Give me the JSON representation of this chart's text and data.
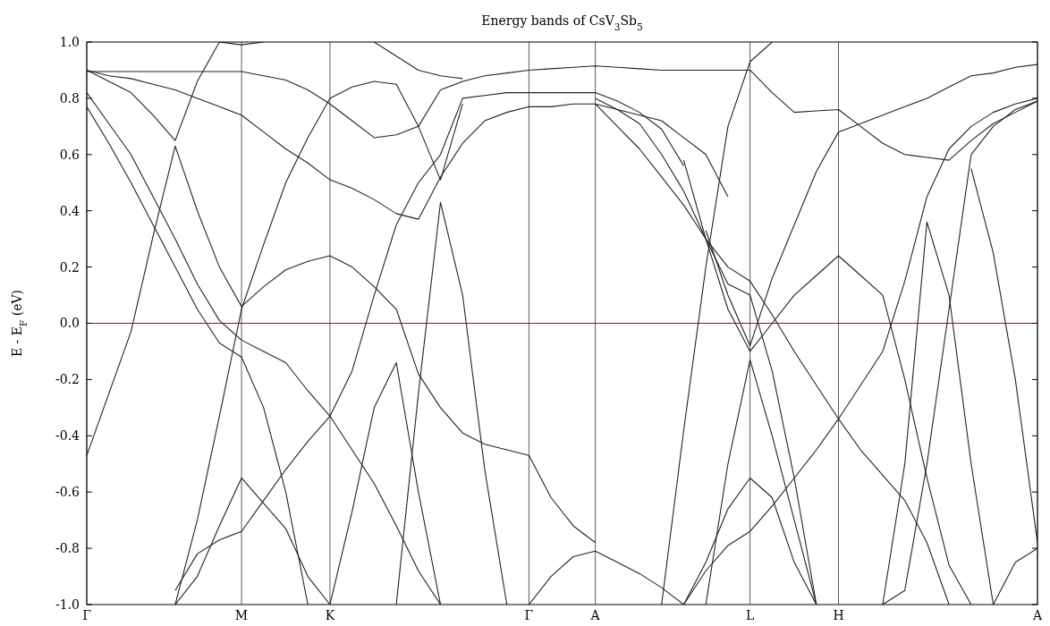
{
  "chart_data": {
    "type": "line",
    "title": "Energy bands of CsV$_{3}$Sb$_{5}$",
    "ylabel": "E - E$_{F}$ (eV)",
    "ylim": [
      -1,
      1
    ],
    "categories": [
      "Γ",
      null,
      null,
      null,
      null,
      null,
      null,
      "M",
      null,
      null,
      null,
      "K",
      null,
      null,
      null,
      null,
      null,
      null,
      null,
      null,
      "Γ",
      null,
      null,
      "A",
      null,
      null,
      null,
      null,
      null,
      null,
      "L",
      null,
      null,
      null,
      "H",
      null,
      null,
      null,
      null,
      null,
      null,
      null,
      null,
      "A"
    ],
    "yticks": [
      {
        "value": -1,
        "label": "-1.0"
      },
      {
        "value": -0.8,
        "label": "-0.8"
      },
      {
        "value": -0.6,
        "label": "-0.6"
      },
      {
        "value": -0.4,
        "label": "-0.4"
      },
      {
        "value": -0.2,
        "label": "-0.2"
      },
      {
        "value": 0,
        "label": "0.0"
      },
      {
        "value": 0.2,
        "label": "0.2"
      },
      {
        "value": 0.4,
        "label": "0.4"
      },
      {
        "value": 0.6,
        "label": "0.6"
      },
      {
        "value": 0.8,
        "label": "0.8"
      },
      {
        "value": 1,
        "label": "1.0"
      }
    ],
    "grid": "x",
    "marker": "none",
    "line_style": "solid",
    "ref_lines": [
      {
        "axis": "y",
        "value": 0,
        "color": "#cc0000"
      }
    ],
    "series": [
      {
        "color": "#222222",
        "values": [
          -0.47,
          -0.25,
          -0.03,
          0.31,
          0.63,
          0.4,
          0.2,
          0.06,
          0.13,
          0.19,
          0.22,
          0.24,
          0.2,
          0.13,
          0.05,
          -0.18,
          -0.3,
          -0.39,
          -0.43,
          -0.45,
          -0.47,
          -0.62,
          -0.72,
          -0.78,
          null,
          null,
          null,
          null,
          null,
          null,
          null,
          null,
          null,
          null,
          null,
          null,
          null,
          null,
          null,
          null,
          null,
          null,
          null,
          null
        ]
      },
      {
        "color": "#222222",
        "values": [
          0.9,
          0.86,
          0.82,
          0.74,
          0.65,
          0.86,
          1.0,
          null,
          null,
          null,
          null,
          null,
          null,
          null,
          null,
          null,
          null,
          null,
          null,
          null,
          null,
          null,
          null,
          null,
          null,
          null,
          null,
          null,
          null,
          null,
          null,
          null,
          null,
          null,
          null,
          null,
          null,
          null,
          null,
          null,
          null,
          null,
          null,
          null
        ]
      },
      {
        "color": "#222222",
        "values": [
          0.82,
          0.71,
          0.6,
          0.45,
          0.3,
          0.14,
          0.01,
          -0.06,
          -0.1,
          -0.14,
          -0.24,
          -0.33,
          -0.45,
          -0.57,
          -0.72,
          -0.88,
          -1.0,
          null,
          null,
          null,
          null,
          null,
          null,
          null,
          null,
          null,
          null,
          null,
          null,
          null,
          null,
          null,
          null,
          null,
          null,
          null,
          null,
          null,
          null,
          null,
          null,
          null,
          null,
          null
        ]
      },
      {
        "color": "#222222",
        "values": [
          0.77,
          0.64,
          0.5,
          0.35,
          0.2,
          0.05,
          -0.07,
          -0.12,
          -0.3,
          -0.6,
          -1.0,
          null,
          null,
          null,
          null,
          null,
          null,
          null,
          null,
          null,
          null,
          null,
          null,
          null,
          null,
          null,
          null,
          null,
          null,
          null,
          null,
          null,
          null,
          null,
          null,
          null,
          null,
          null,
          null,
          null,
          null,
          null,
          null,
          null
        ]
      },
      {
        "color": "#222222",
        "values": [
          0.9,
          0.88,
          0.87,
          0.85,
          0.83,
          0.8,
          0.77,
          0.74,
          0.68,
          0.62,
          0.57,
          0.51,
          0.48,
          0.44,
          0.39,
          0.37,
          0.52,
          0.64,
          0.72,
          0.75,
          0.77,
          0.77,
          0.78,
          0.78,
          0.76,
          0.74,
          0.72,
          0.66,
          0.6,
          0.45,
          null,
          null,
          null,
          null,
          null,
          null,
          null,
          null,
          null,
          null,
          null,
          null,
          null,
          null
        ]
      },
      {
        "color": "#222222",
        "values": [
          0.895,
          0.895,
          0.895,
          0.895,
          0.895,
          0.895,
          0.895,
          0.895,
          0.88,
          0.865,
          0.83,
          0.78,
          0.72,
          0.66,
          0.67,
          0.7,
          0.83,
          0.86,
          0.88,
          0.89,
          0.9,
          0.905,
          0.91,
          0.915,
          0.91,
          0.905,
          0.9,
          0.9,
          0.9,
          0.9,
          0.9,
          0.82,
          0.75,
          0.755,
          0.76,
          0.7,
          0.64,
          0.6,
          0.59,
          0.58,
          0.65,
          0.71,
          0.75,
          0.79
        ]
      },
      {
        "color": "#222222",
        "values": [
          null,
          null,
          null,
          null,
          -1.0,
          -0.9,
          -0.72,
          -0.55,
          -0.64,
          -0.73,
          -0.9,
          -1.0,
          null,
          null,
          null,
          null,
          null,
          null,
          null,
          null,
          null,
          null,
          null,
          null,
          null,
          null,
          null,
          null,
          null,
          null,
          null,
          null,
          null,
          null,
          null,
          null,
          null,
          null,
          null,
          null,
          null,
          null,
          null,
          null
        ]
      },
      {
        "color": "#222222",
        "values": [
          null,
          null,
          null,
          null,
          -0.95,
          -0.82,
          -0.77,
          -0.74,
          -0.63,
          -0.52,
          -0.42,
          -0.33,
          -0.17,
          0.1,
          0.35,
          0.5,
          0.6,
          0.8,
          0.81,
          0.82,
          0.82,
          0.82,
          0.82,
          0.82,
          0.79,
          0.75,
          0.69,
          0.56,
          null,
          null,
          null,
          null,
          null,
          null,
          null,
          null,
          null,
          null,
          null,
          null,
          null,
          null,
          null,
          null
        ]
      },
      {
        "color": "#222222",
        "values": [
          null,
          null,
          null,
          null,
          -1.0,
          -0.7,
          -0.33,
          0.05,
          0.28,
          0.5,
          0.66,
          0.8,
          0.84,
          0.86,
          0.85,
          0.7,
          0.51,
          0.78,
          null,
          null,
          null,
          null,
          null,
          null,
          null,
          null,
          null,
          null,
          null,
          null,
          null,
          null,
          null,
          null,
          null,
          null,
          null,
          null,
          null,
          null,
          null,
          null,
          null,
          null
        ]
      },
      {
        "color": "#222222",
        "values": [
          null,
          null,
          null,
          null,
          null,
          null,
          null,
          null,
          null,
          null,
          null,
          null,
          null,
          null,
          -1.0,
          -0.25,
          0.43,
          0.1,
          -0.52,
          -1.0,
          null,
          null,
          null,
          null,
          null,
          null,
          null,
          null,
          null,
          null,
          null,
          null,
          null,
          null,
          null,
          null,
          null,
          null,
          null,
          null,
          null,
          null,
          null,
          null
        ]
      },
      {
        "color": "#222222",
        "values": [
          null,
          null,
          null,
          null,
          null,
          null,
          null,
          null,
          null,
          null,
          null,
          -1.0,
          -0.67,
          -0.3,
          -0.14,
          -0.6,
          -1.0,
          null,
          null,
          null,
          null,
          null,
          null,
          null,
          null,
          null,
          null,
          null,
          null,
          null,
          null,
          null,
          null,
          null,
          null,
          null,
          null,
          null,
          null,
          null,
          null,
          null,
          null,
          null
        ]
      },
      {
        "color": "#222222",
        "values": [
          null,
          null,
          null,
          null,
          null,
          null,
          1.0,
          0.99,
          1.0,
          null,
          null,
          null,
          null,
          null,
          null,
          null,
          null,
          null,
          null,
          null,
          null,
          null,
          null,
          null,
          null,
          null,
          null,
          null,
          null,
          null,
          null,
          null,
          null,
          null,
          null,
          null,
          null,
          null,
          null,
          null,
          null,
          null,
          null,
          null
        ]
      },
      {
        "color": "#222222",
        "values": [
          null,
          null,
          null,
          null,
          null,
          null,
          null,
          null,
          null,
          null,
          null,
          null,
          null,
          1.0,
          0.95,
          0.9,
          0.88,
          0.87,
          null,
          null,
          null,
          null,
          null,
          null,
          null,
          null,
          null,
          null,
          null,
          null,
          null,
          null,
          null,
          null,
          null,
          null,
          null,
          null,
          null,
          null,
          null,
          null,
          null,
          null
        ]
      },
      {
        "color": "#222222",
        "values": [
          null,
          null,
          null,
          null,
          null,
          null,
          null,
          null,
          null,
          null,
          null,
          null,
          null,
          null,
          null,
          null,
          null,
          null,
          null,
          null,
          -1.0,
          -0.9,
          -0.83,
          -0.81,
          -0.85,
          -0.89,
          -0.94,
          -1.0,
          null,
          null,
          null,
          null,
          null,
          null,
          null,
          null,
          null,
          null,
          null,
          null,
          null,
          null,
          null,
          null
        ]
      },
      {
        "color": "#222222",
        "values": [
          null,
          null,
          null,
          null,
          null,
          null,
          null,
          null,
          null,
          null,
          null,
          null,
          null,
          null,
          null,
          null,
          null,
          null,
          null,
          null,
          null,
          null,
          null,
          0.78,
          0.7,
          0.62,
          0.52,
          0.42,
          0.3,
          0.2,
          0.15,
          0.03,
          -0.1,
          -0.22,
          -0.34,
          -0.45,
          -0.54,
          -0.63,
          -0.78,
          -1.0,
          null,
          null,
          null,
          null
        ]
      },
      {
        "color": "#222222",
        "values": [
          null,
          null,
          null,
          null,
          null,
          null,
          null,
          null,
          null,
          null,
          null,
          null,
          null,
          null,
          null,
          null,
          null,
          null,
          null,
          null,
          null,
          null,
          null,
          0.8,
          0.76,
          0.71,
          0.6,
          0.47,
          0.3,
          0.14,
          0.1,
          -0.17,
          -0.55,
          -1.0,
          null,
          null,
          null,
          null,
          null,
          null,
          null,
          null,
          null,
          null
        ]
      },
      {
        "color": "#222222",
        "values": [
          null,
          null,
          null,
          null,
          null,
          null,
          null,
          null,
          null,
          null,
          null,
          null,
          null,
          null,
          null,
          null,
          null,
          null,
          null,
          null,
          null,
          null,
          null,
          null,
          null,
          null,
          -1.0,
          -0.38,
          0.2,
          0.7,
          0.93,
          1.0,
          null,
          null,
          null,
          null,
          null,
          null,
          null,
          null,
          null,
          null,
          null,
          null
        ]
      },
      {
        "color": "#222222",
        "values": [
          null,
          null,
          null,
          null,
          null,
          null,
          null,
          null,
          null,
          null,
          null,
          null,
          null,
          null,
          null,
          null,
          null,
          null,
          null,
          null,
          null,
          null,
          null,
          null,
          null,
          null,
          null,
          null,
          0.33,
          0.1,
          -0.08,
          0.16,
          0.35,
          0.54,
          0.68,
          0.71,
          0.74,
          0.77,
          0.8,
          0.84,
          0.88,
          0.89,
          0.91,
          0.92
        ]
      },
      {
        "color": "#222222",
        "values": [
          null,
          null,
          null,
          null,
          null,
          null,
          null,
          null,
          null,
          null,
          null,
          null,
          null,
          null,
          null,
          null,
          null,
          null,
          null,
          null,
          null,
          null,
          null,
          null,
          null,
          null,
          null,
          0.58,
          0.3,
          0.05,
          -0.1,
          0,
          0.1,
          0.17,
          0.24,
          0.17,
          0.1,
          -0.2,
          -0.55,
          -0.86,
          -1.0,
          null,
          null,
          null
        ]
      },
      {
        "color": "#222222",
        "values": [
          null,
          null,
          null,
          null,
          null,
          null,
          null,
          null,
          null,
          null,
          null,
          null,
          null,
          null,
          null,
          null,
          null,
          null,
          null,
          null,
          null,
          null,
          null,
          null,
          null,
          null,
          null,
          null,
          -1.0,
          -0.5,
          -0.13,
          -0.4,
          -0.7,
          -1.0,
          null,
          null,
          null,
          null,
          null,
          null,
          null,
          null,
          null,
          null
        ]
      },
      {
        "color": "#222222",
        "values": [
          null,
          null,
          null,
          null,
          null,
          null,
          null,
          null,
          null,
          null,
          null,
          null,
          null,
          null,
          null,
          null,
          null,
          null,
          null,
          null,
          null,
          null,
          null,
          null,
          null,
          null,
          null,
          -1.0,
          -0.85,
          -0.66,
          -0.55,
          -0.62,
          -0.85,
          -1.0,
          null,
          null,
          null,
          null,
          null,
          null,
          null,
          null,
          null,
          null
        ]
      },
      {
        "color": "#222222",
        "values": [
          null,
          null,
          null,
          null,
          null,
          null,
          null,
          null,
          null,
          null,
          null,
          null,
          null,
          null,
          null,
          null,
          null,
          null,
          null,
          null,
          null,
          null,
          null,
          null,
          null,
          null,
          null,
          -1.0,
          -0.88,
          -0.79,
          -0.74,
          -0.65,
          -0.55,
          -0.45,
          -0.34,
          -0.22,
          -0.1,
          0.15,
          0.45,
          0.62,
          0.7,
          0.75,
          0.78,
          0.8
        ]
      },
      {
        "color": "#222222",
        "values": [
          null,
          null,
          null,
          null,
          null,
          null,
          null,
          null,
          null,
          null,
          null,
          null,
          null,
          null,
          null,
          null,
          null,
          null,
          null,
          null,
          null,
          null,
          null,
          null,
          null,
          null,
          null,
          null,
          null,
          null,
          null,
          null,
          null,
          null,
          null,
          null,
          -1.0,
          -0.5,
          0.36,
          0.1,
          -0.5,
          -1.0,
          null,
          null
        ]
      },
      {
        "color": "#222222",
        "values": [
          null,
          null,
          null,
          null,
          null,
          null,
          null,
          null,
          null,
          null,
          null,
          null,
          null,
          null,
          null,
          null,
          null,
          null,
          null,
          null,
          null,
          null,
          null,
          null,
          null,
          null,
          null,
          null,
          null,
          null,
          null,
          null,
          null,
          null,
          null,
          null,
          -1.0,
          -0.95,
          -0.5,
          0.05,
          0.6,
          0.7,
          0.76,
          0.79
        ]
      },
      {
        "color": "#222222",
        "values": [
          null,
          null,
          null,
          null,
          null,
          null,
          null,
          null,
          null,
          null,
          null,
          null,
          null,
          null,
          null,
          null,
          null,
          null,
          null,
          null,
          null,
          null,
          null,
          null,
          null,
          null,
          null,
          null,
          null,
          null,
          null,
          null,
          null,
          null,
          null,
          null,
          null,
          null,
          null,
          null,
          0.55,
          0.25,
          -0.2,
          -0.78
        ]
      },
      {
        "color": "#222222",
        "values": [
          null,
          null,
          null,
          null,
          null,
          null,
          null,
          null,
          null,
          null,
          null,
          null,
          null,
          null,
          null,
          null,
          null,
          null,
          null,
          null,
          null,
          null,
          null,
          null,
          null,
          null,
          null,
          null,
          null,
          null,
          null,
          null,
          null,
          null,
          null,
          null,
          null,
          null,
          null,
          null,
          null,
          -1.0,
          -0.85,
          -0.8
        ]
      }
    ]
  }
}
